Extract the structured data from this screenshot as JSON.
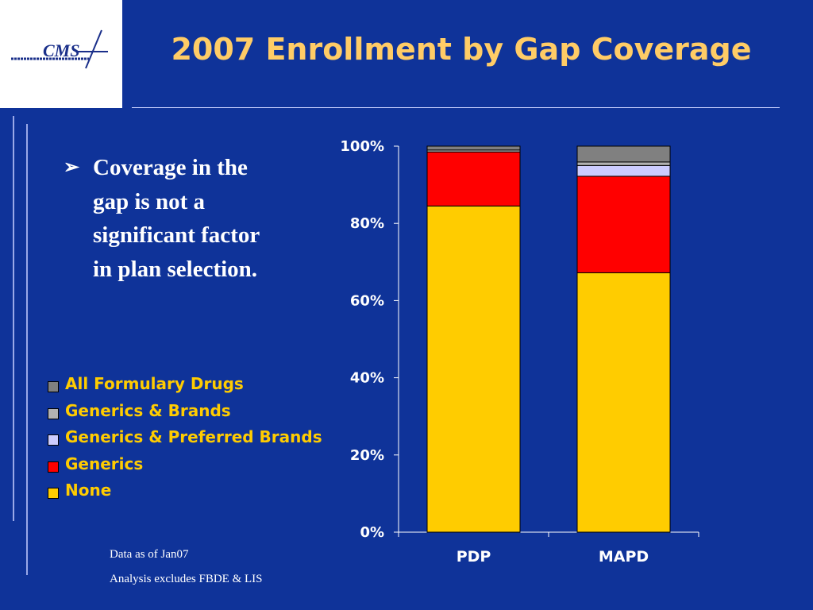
{
  "slide": {
    "title": "2007 Enrollment by Gap Coverage",
    "logo_text": "CMS",
    "bullet_marker": "➢",
    "bullet_text": "Coverage in the gap is not a significant factor in plan selection.",
    "notes": [
      "Data as of Jan07",
      "Analysis excludes FBDE & LIS"
    ]
  },
  "colors": {
    "background": "#0f3399",
    "title": "#ffcc66",
    "legend_text": "#ffcc00"
  },
  "chart_data": {
    "type": "bar",
    "stacked": true,
    "categories": [
      "PDP",
      "MAPD"
    ],
    "y_ticks": [
      "0%",
      "20%",
      "40%",
      "60%",
      "80%",
      "100%"
    ],
    "ylim": [
      0,
      100
    ],
    "legend_placement": "left",
    "series": [
      {
        "name": "None",
        "color": "#ffcc00",
        "values": [
          84.5,
          67.2
        ]
      },
      {
        "name": "Generics",
        "color": "#ff0000",
        "values": [
          14.0,
          25.0
        ]
      },
      {
        "name": "Generics & Preferred Brands",
        "color": "#ccccff",
        "values": [
          0.0,
          2.8
        ]
      },
      {
        "name": "Generics & Brands",
        "color": "#b2b2b2",
        "values": [
          0.5,
          0.9
        ]
      },
      {
        "name": "All Formulary Drugs",
        "color": "#808080",
        "values": [
          1.0,
          4.1
        ]
      }
    ],
    "legend_order": [
      "All Formulary Drugs",
      "Generics & Brands",
      "Generics & Preferred Brands",
      "Generics",
      "None"
    ]
  }
}
